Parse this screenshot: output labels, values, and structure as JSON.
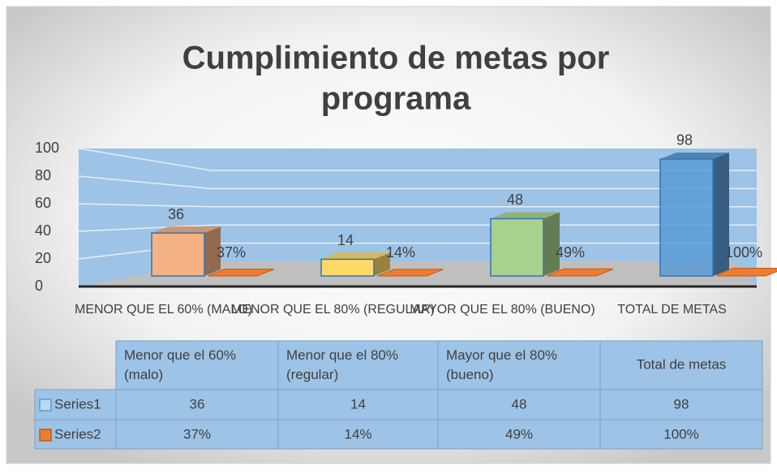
{
  "chart_data": {
    "type": "bar3d",
    "title": "Cumplimiento de metas por programa",
    "categories": [
      "MENOR QUE EL 60% (MALO)",
      "MENOR QUE EL 80% (REGULAR)",
      "MAYOR QUE EL 80% (BUENO)",
      "TOTAL DE METAS"
    ],
    "table_headers": [
      "Menor que el 60% (malo)",
      "Menor que el 80% (regular)",
      "Mayor que el 80% (bueno)",
      "Total de metas"
    ],
    "series": [
      {
        "name": "Series1",
        "color": "#5b9bd5",
        "colors": [
          "#f4b183",
          "#ffd966",
          "#a9d18e",
          "#5b9bd5"
        ],
        "values": [
          36,
          14,
          48,
          98
        ]
      },
      {
        "name": "Series2",
        "color": "#ed7d31",
        "values": [
          0.37,
          0.14,
          0.49,
          1.0
        ],
        "value_labels": [
          "37%",
          "14%",
          "49%",
          "100%"
        ]
      }
    ],
    "ylim": [
      0,
      100
    ],
    "yticks": [
      0,
      20,
      40,
      60,
      80,
      100
    ],
    "grid": true,
    "data_table": true
  }
}
